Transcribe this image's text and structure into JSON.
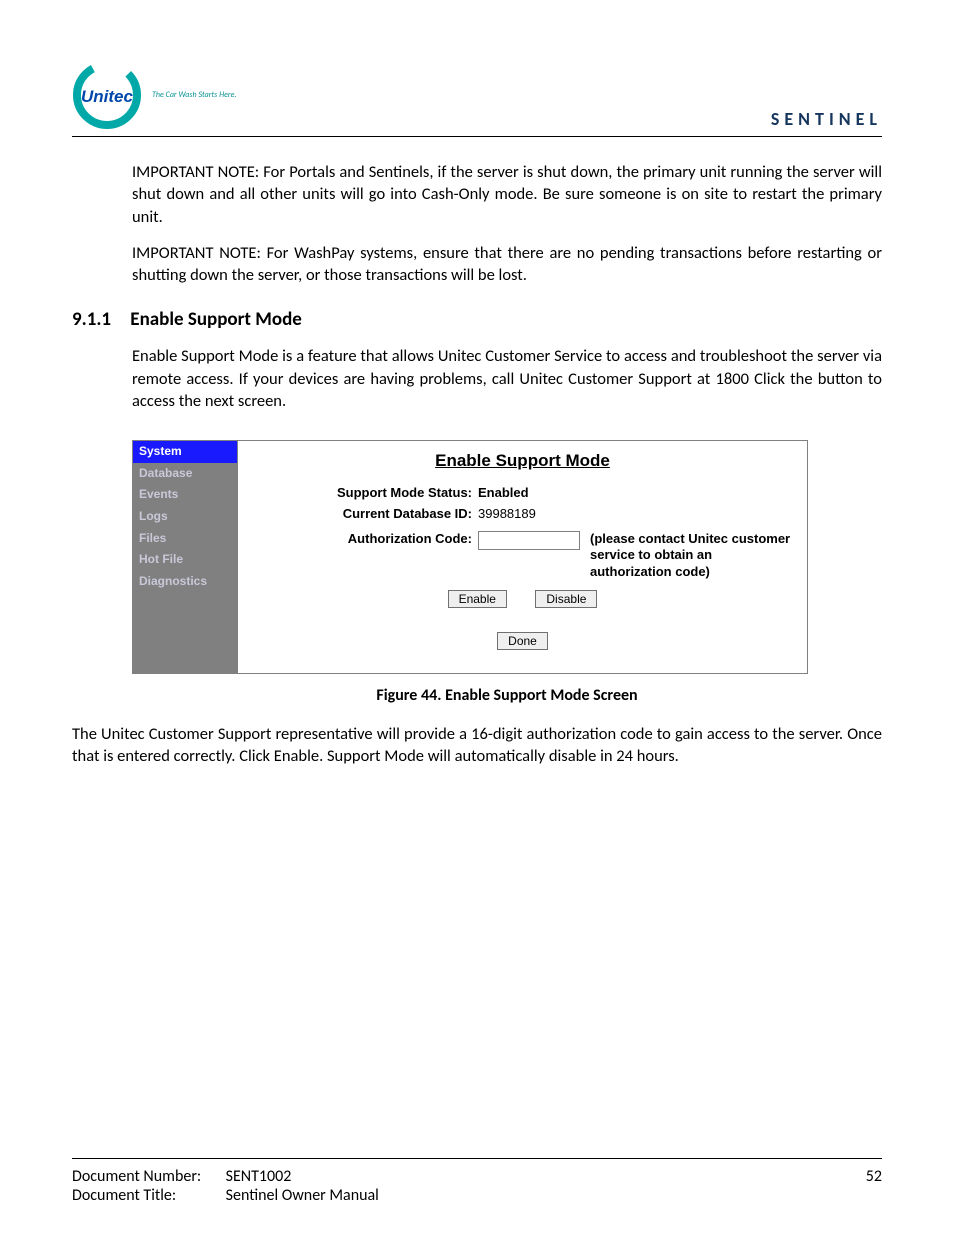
{
  "header": {
    "brand_name": "Unitec",
    "tagline": "The Car Wash Starts Here.",
    "doc_header": "SENTINEL",
    "logo_ring_color": "#00a8a8",
    "logo_text_color": "#0047ab"
  },
  "paragraphs": {
    "note1": "IMPORTANT NOTE: For Portals and Sentinels, if the server is shut down, the primary unit running the server will shut down and all other units will go into Cash-Only mode. Be sure someone is on site to restart the primary unit.",
    "note2": "IMPORTANT NOTE: For WashPay systems, ensure that there are no pending transactions before restarting or shutting down the server, or those transactions will be lost.",
    "section_number": "9.1.1",
    "section_title": "Enable Support Mode",
    "section_body": "Enable Support Mode is a feature that allows Unitec Customer Service to access and troubleshoot the server via remote access. If your devices are having problems, call Unitec Customer Support at 1800 Click the button to access the next screen.",
    "after_figure": "The Unitec Customer Support representative will provide a 16-digit authorization code to gain access to the server. Once that is entered correctly. Click Enable. Support Mode will automatically disable in 24 hours."
  },
  "app": {
    "title": "Enable Support Mode",
    "sidebar": [
      {
        "label": "System",
        "selected": true
      },
      {
        "label": "Database",
        "selected": false
      },
      {
        "label": "Events",
        "selected": false
      },
      {
        "label": "Logs",
        "selected": false
      },
      {
        "label": "Files",
        "selected": false
      },
      {
        "label": "Hot File",
        "selected": false
      },
      {
        "label": "Diagnostics",
        "selected": false
      }
    ],
    "status_label": "Support Mode Status:",
    "status_value": "Enabled",
    "dbid_label": "Current Database ID:",
    "dbid_value": "39988189",
    "auth_label": "Authorization Code:",
    "auth_value": "",
    "auth_hint": "(please contact Unitec customer service to obtain an authorization code)",
    "enable_btn": "Enable",
    "disable_btn": "Disable",
    "done_btn": "Done",
    "sidebar_bg": "#808080",
    "sidebar_selected_bg": "#1a1aff",
    "sidebar_text": "#c8c8d8"
  },
  "figure_caption": "Figure 44. Enable Support Mode Screen",
  "footer": {
    "docnum_label": "Document Number:",
    "docnum_value": "SENT1002",
    "doctitle_label": "Document Title:",
    "doctitle_value": "Sentinel Owner Manual",
    "page_number": "52"
  }
}
